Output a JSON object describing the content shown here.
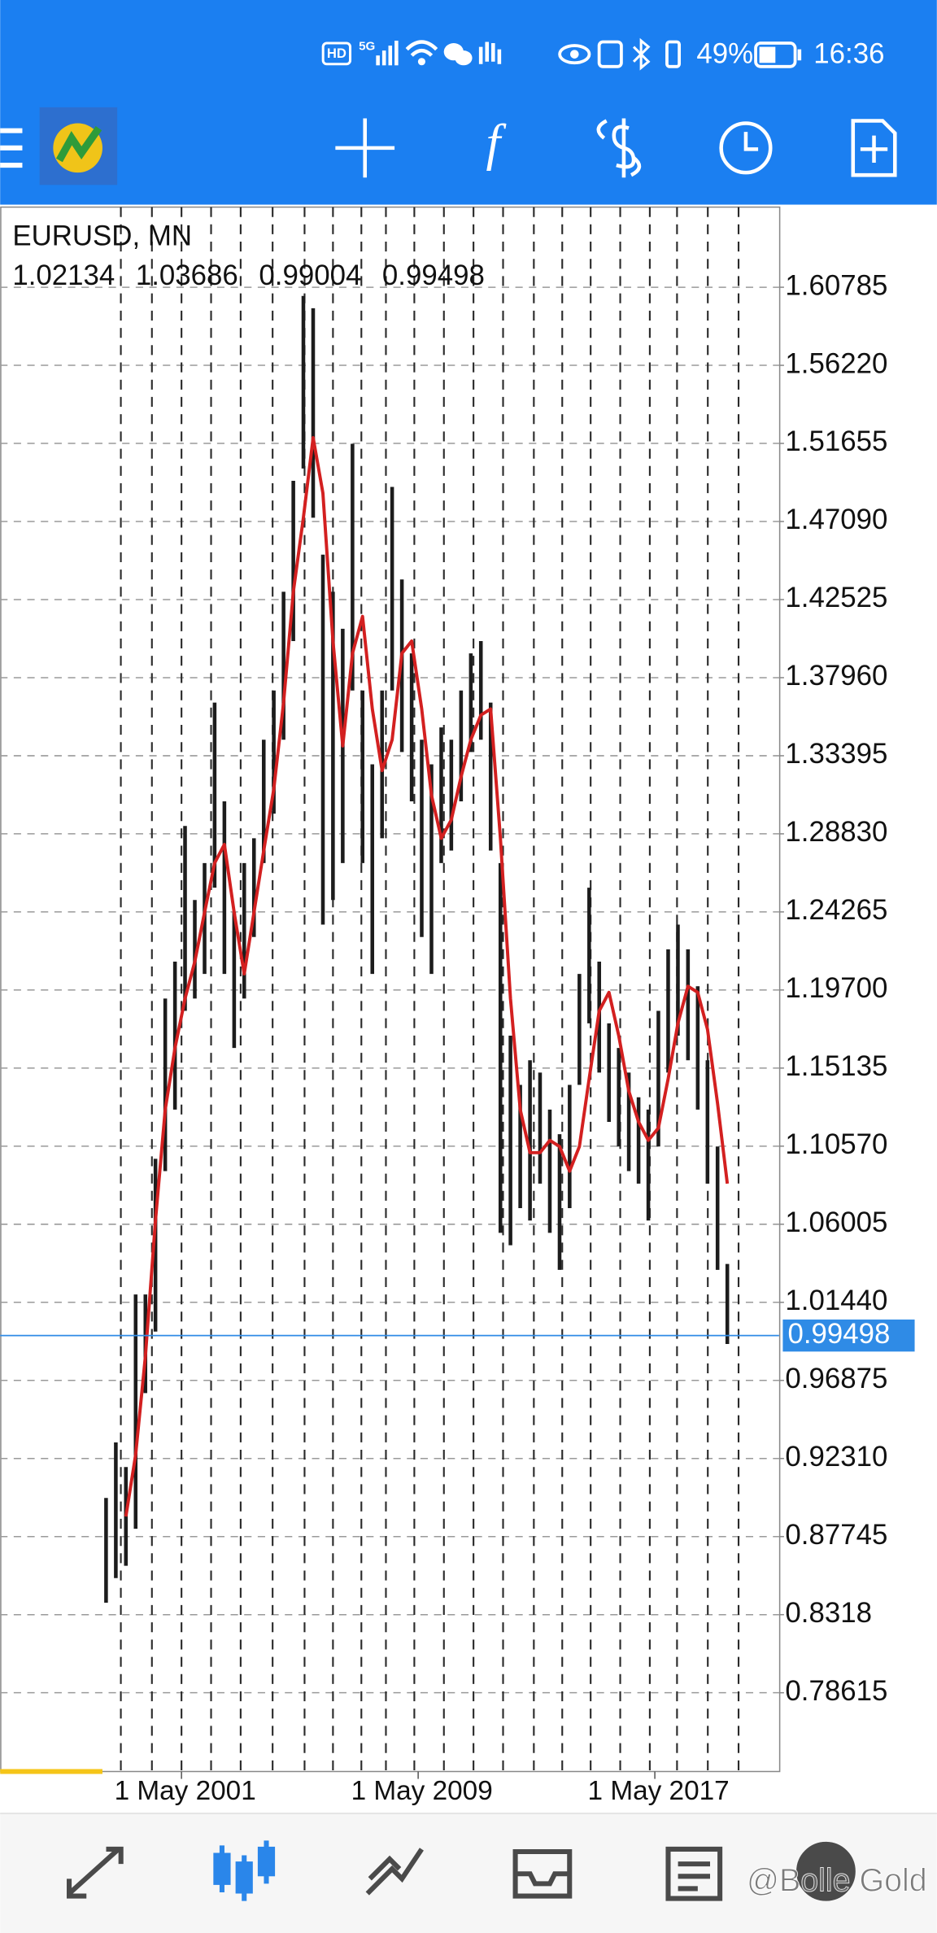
{
  "status_bar": {
    "hd": "HD",
    "network": "5G",
    "battery": "49%",
    "time": "16:36"
  },
  "toolbar": {
    "indicators": "f"
  },
  "chart_data": {
    "type": "ohlc",
    "title": "EURUSD, MN",
    "last_bar": {
      "open": 1.02134,
      "high": 1.03686,
      "low": 0.99004,
      "close": 0.99498
    },
    "bar_color": "#1c1c1c",
    "ma": {
      "color": "#d32020",
      "values": [
        null,
        null,
        0.8892,
        0.9253,
        0.9829,
        1.0622,
        1.1271,
        1.1631,
        1.192,
        1.2136,
        1.2424,
        1.2712,
        1.2821,
        1.2424,
        1.2064,
        1.2424,
        1.2785,
        1.3145,
        1.365,
        1.4298,
        1.4731,
        1.5199,
        1.4875,
        1.401,
        1.3397,
        1.3938,
        1.4154,
        1.3613,
        1.3253,
        1.3433,
        1.3938,
        1.401,
        1.3613,
        1.3109,
        1.2857,
        1.2965,
        1.3217,
        1.3433,
        1.3577,
        1.3613,
        1.2857,
        1.192,
        1.1271,
        1.1019,
        1.1019,
        1.1091,
        1.1055,
        1.0911,
        1.1055,
        1.1451,
        1.1848,
        1.1956,
        1.1703,
        1.1379,
        1.1199,
        1.1091,
        1.1163,
        1.1451,
        1.1775,
        1.1992,
        1.1956,
        1.174,
        1.1307,
        1.0838
      ]
    },
    "x": [
      1998.78,
      1999.11,
      1999.45,
      1999.78,
      2000.11,
      2000.45,
      2000.78,
      2001.11,
      2001.45,
      2001.78,
      2002.11,
      2002.45,
      2002.78,
      2003.11,
      2003.45,
      2003.78,
      2004.11,
      2004.45,
      2004.78,
      2005.11,
      2005.45,
      2005.78,
      2006.11,
      2006.45,
      2006.78,
      2007.11,
      2007.45,
      2007.78,
      2008.11,
      2008.45,
      2008.78,
      2009.11,
      2009.45,
      2009.78,
      2010.11,
      2010.45,
      2010.78,
      2011.11,
      2011.45,
      2011.78,
      2012.11,
      2012.45,
      2012.78,
      2013.11,
      2013.45,
      2013.78,
      2014.11,
      2014.45,
      2014.78,
      2015.11,
      2015.45,
      2015.78,
      2016.11,
      2016.45,
      2016.78,
      2017.11,
      2017.45,
      2017.78,
      2018.11,
      2018.45,
      2018.78,
      2019.11,
      2019.45,
      2019.78
    ],
    "high": [
      0.9,
      0.9325,
      0.9181,
      1.019,
      1.019,
      1.0983,
      1.192,
      1.2136,
      1.2929,
      1.2496,
      1.2712,
      1.365,
      1.3073,
      1.2424,
      1.2712,
      1.2857,
      1.3433,
      1.3721,
      1.4298,
      1.4947,
      1.6028,
      1.5956,
      1.4515,
      1.4298,
      1.4082,
      1.5163,
      1.3721,
      1.3289,
      1.3721,
      1.4911,
      1.437,
      1.3938,
      1.3433,
      1.3289,
      1.3505,
      1.3433,
      1.3721,
      1.3938,
      1.401,
      1.365,
      1.2712,
      1.1703,
      1.1415,
      1.1559,
      1.1487,
      1.1271,
      1.1127,
      1.1415,
      1.2064,
      1.2568,
      1.2136,
      1.1775,
      1.1631,
      1.1487,
      1.1343,
      1.1271,
      1.1848,
      1.2208,
      1.2352,
      1.2208,
      1.1992,
      1.1559,
      1.1055,
      1.03686
    ],
    "low": [
      0.8388,
      0.8532,
      0.8604,
      0.882,
      0.9613,
      0.9973,
      1.0911,
      1.1271,
      1.1848,
      1.192,
      1.2064,
      1.2568,
      1.2064,
      1.1631,
      1.192,
      1.228,
      1.2712,
      1.3001,
      1.3433,
      1.401,
      1.5019,
      1.4731,
      1.2352,
      1.2496,
      1.2712,
      1.3721,
      1.2712,
      1.2064,
      1.2857,
      1.3721,
      1.3361,
      1.3073,
      1.228,
      1.2064,
      1.2712,
      1.2785,
      1.3073,
      1.3361,
      1.3433,
      1.2785,
      1.055,
      1.0478,
      1.0695,
      1.0622,
      1.0838,
      1.055,
      1.0334,
      1.0695,
      1.1415,
      1.1775,
      1.1487,
      1.1199,
      1.1055,
      1.0911,
      1.0838,
      1.0622,
      1.1055,
      1.1487,
      1.1703,
      1.1559,
      1.1271,
      1.0838,
      1.0334,
      0.99004
    ],
    "xlim": [
      1995.2,
      2021.53
    ],
    "ylim": [
      0.7401,
      1.6547
    ],
    "xticks": [
      {
        "value": 2001.33,
        "label": "1 May 2001"
      },
      {
        "value": 2009.33,
        "label": "1 May 2009"
      },
      {
        "value": 2017.33,
        "label": "1 May 2017"
      }
    ],
    "xgrid": [
      1999.28,
      2000.33,
      2001.33,
      2002.33,
      2003.33,
      2004.41,
      2005.49,
      2006.45,
      2007.41,
      2008.24,
      2009.2,
      2010.2,
      2011.2,
      2012.2,
      2013.24,
      2014.2,
      2015.16,
      2016.16,
      2017.16,
      2018.08,
      2019.12,
      2020.16
    ],
    "yticks": [
      1.60785,
      {
        "value": 1.5622,
        "label": "1.56220"
      },
      1.51655,
      {
        "value": 1.4709,
        "label": "1.47090"
      },
      1.42525,
      {
        "value": 1.3796,
        "label": "1.37960"
      },
      1.33395,
      {
        "value": 1.2883,
        "label": "1.28830"
      },
      1.24265,
      {
        "value": 1.197,
        "label": "1.19700"
      },
      1.15135,
      {
        "value": 1.1057,
        "label": "1.10570"
      },
      1.06005,
      {
        "value": 1.0144,
        "label": "1.01440"
      },
      0.96875,
      {
        "value": 0.9231,
        "label": "0.92310"
      },
      0.87745,
      0.8318,
      0.78615
    ],
    "grid": true,
    "price_line_color": "#2f8be6"
  },
  "watermark": "@Bolle Gold"
}
